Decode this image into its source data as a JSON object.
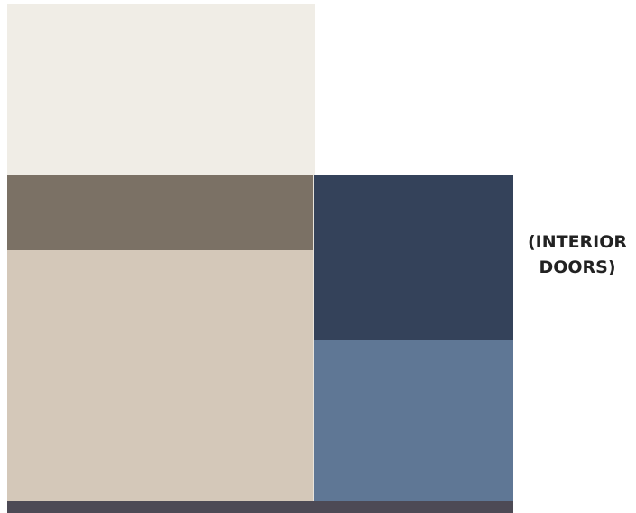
{
  "swatches": [
    {
      "id": "sw-cream",
      "name": "cream-swatch",
      "color": "#f0ede6"
    },
    {
      "id": "sw-taupe",
      "name": "taupe-swatch",
      "color": "#7b7165"
    },
    {
      "id": "sw-beige",
      "name": "beige-swatch",
      "color": "#d4c8b9"
    },
    {
      "id": "sw-navy",
      "name": "navy-swatch",
      "color": "#34425a"
    },
    {
      "id": "sw-blue",
      "name": "slate-blue-swatch",
      "color": "#5f7795"
    },
    {
      "id": "sw-bottom",
      "name": "charcoal-swatch",
      "color": "#4d4a55"
    }
  ],
  "label": {
    "line1": "(INTERIOR",
    "line2": "DOORS)"
  }
}
